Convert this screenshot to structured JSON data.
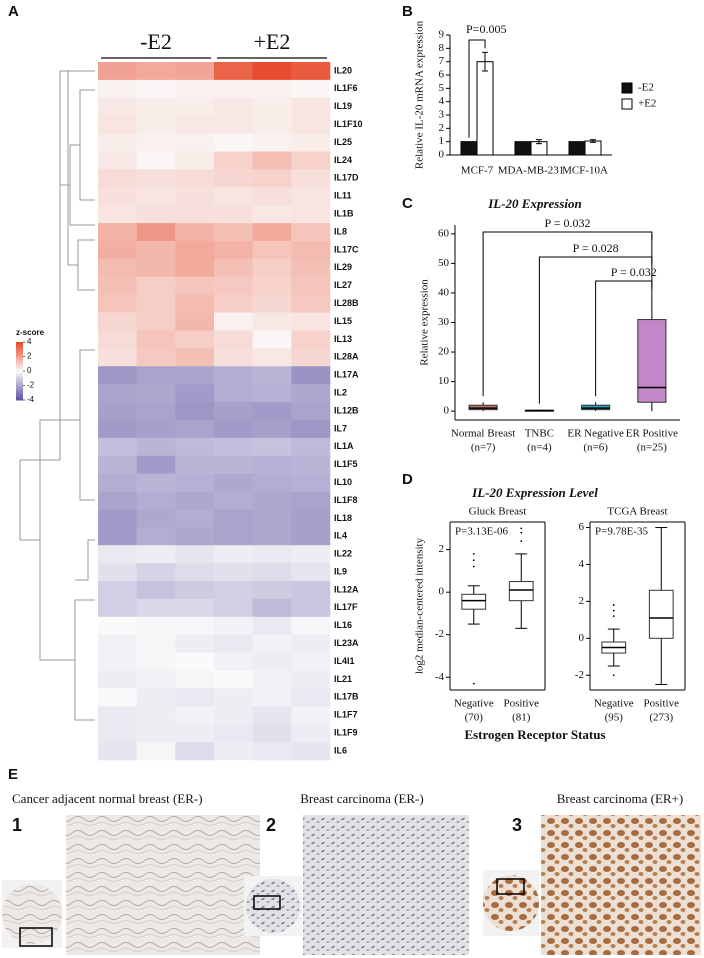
{
  "panel_labels": [
    "A",
    "B",
    "C",
    "D"
  ],
  "chart_data": [
    {
      "type": "heatmap",
      "groups": [
        "-E2",
        "+E2"
      ],
      "colorbar_label": "z-score",
      "zlim": [
        -4,
        4
      ],
      "zticks": [
        4,
        2,
        0,
        -2,
        -4
      ],
      "rows": [
        "IL20",
        "IL1F6",
        "IL19",
        "IL1F10",
        "IL25",
        "IL24",
        "IL17D",
        "IL11",
        "IL1B",
        "IL8",
        "IL17C",
        "IL29",
        "IL27",
        "IL28B",
        "IL15",
        "IL13",
        "IL28A",
        "IL17A",
        "IL2",
        "IL12B",
        "IL7",
        "IL1A",
        "IL1F5",
        "IL10",
        "IL1F8",
        "IL18",
        "IL4",
        "IL22",
        "IL9",
        "IL12A",
        "IL17F",
        "IL16",
        "IL23A",
        "IL4I1",
        "IL21",
        "IL17B",
        "IL1F7",
        "IL1F9",
        "IL6"
      ],
      "values": [
        [
          2.0,
          1.8,
          1.9,
          3.4,
          3.9,
          3.6
        ],
        [
          0.2,
          0.1,
          0.2,
          0.2,
          0.2,
          0.1
        ],
        [
          0.4,
          0.3,
          0.3,
          0.4,
          0.3,
          0.5
        ],
        [
          0.5,
          0.3,
          0.4,
          0.4,
          0.3,
          0.5
        ],
        [
          0.3,
          0.2,
          0.2,
          0.1,
          0.2,
          0.3
        ],
        [
          0.4,
          0.1,
          0.3,
          0.9,
          1.3,
          0.9
        ],
        [
          0.7,
          0.6,
          0.7,
          0.8,
          0.9,
          0.6
        ],
        [
          0.6,
          0.5,
          0.6,
          0.5,
          0.6,
          0.5
        ],
        [
          0.5,
          0.6,
          0.6,
          0.6,
          0.4,
          0.5
        ],
        [
          1.6,
          2.2,
          1.6,
          1.3,
          1.8,
          1.2
        ],
        [
          1.7,
          1.5,
          1.8,
          1.6,
          1.2,
          1.4
        ],
        [
          1.4,
          1.5,
          1.8,
          1.3,
          1.0,
          1.3
        ],
        [
          1.3,
          1.0,
          1.2,
          1.1,
          0.9,
          1.2
        ],
        [
          1.2,
          1.0,
          1.4,
          1.0,
          0.8,
          1.1
        ],
        [
          0.8,
          1.0,
          1.5,
          0.2,
          0.4,
          0.5
        ],
        [
          0.7,
          1.2,
          1.0,
          0.7,
          0.1,
          0.9
        ],
        [
          0.6,
          1.1,
          1.3,
          0.6,
          0.4,
          0.8
        ],
        [
          -2.3,
          -2.0,
          -2.0,
          -1.8,
          -1.6,
          -2.4
        ],
        [
          -2.0,
          -1.9,
          -2.2,
          -1.8,
          -1.7,
          -1.9
        ],
        [
          -2.1,
          -2.0,
          -2.3,
          -2.1,
          -2.2,
          -2.0
        ],
        [
          -2.2,
          -2.1,
          -2.0,
          -2.2,
          -2.1,
          -2.3
        ],
        [
          -1.4,
          -1.6,
          -1.5,
          -1.4,
          -1.3,
          -1.5
        ],
        [
          -1.6,
          -2.2,
          -1.6,
          -1.6,
          -1.7,
          -1.6
        ],
        [
          -1.8,
          -1.6,
          -1.7,
          -1.9,
          -1.8,
          -1.7
        ],
        [
          -2.0,
          -1.8,
          -1.9,
          -1.8,
          -1.9,
          -2.0
        ],
        [
          -2.2,
          -1.9,
          -1.8,
          -2.0,
          -1.9,
          -2.1
        ],
        [
          -2.2,
          -1.8,
          -1.9,
          -2.0,
          -1.9,
          -2.1
        ],
        [
          -0.4,
          -0.3,
          -0.5,
          -0.3,
          -0.4,
          -0.3
        ],
        [
          -0.6,
          -0.9,
          -0.7,
          -0.6,
          -0.7,
          -0.5
        ],
        [
          -1.0,
          -1.3,
          -1.1,
          -1.0,
          -1.1,
          -1.2
        ],
        [
          -1.0,
          -0.8,
          -0.8,
          -1.0,
          -1.5,
          -1.2
        ],
        [
          0.0,
          -0.1,
          -0.1,
          -0.2,
          -0.4,
          -0.1
        ],
        [
          -0.2,
          -0.1,
          -0.3,
          -0.4,
          -0.2,
          -0.3
        ],
        [
          -0.2,
          -0.1,
          0.0,
          -0.2,
          -0.3,
          -0.2
        ],
        [
          -0.3,
          -0.2,
          -0.1,
          0.0,
          -0.2,
          -0.3
        ],
        [
          0.0,
          -0.3,
          -0.4,
          -0.3,
          -0.2,
          -0.4
        ],
        [
          -0.4,
          -0.3,
          -0.2,
          -0.3,
          -0.5,
          -0.2
        ],
        [
          -0.4,
          -0.3,
          -0.3,
          -0.4,
          -0.6,
          -0.3
        ],
        [
          -0.5,
          -0.1,
          -0.7,
          -0.3,
          -0.4,
          -0.5
        ]
      ]
    },
    {
      "type": "bar",
      "ylabel": "Relative IL-20 mRNA expression",
      "categories": [
        "MCF-7",
        "MDA-MB-231",
        "MCF-10A"
      ],
      "series": [
        {
          "name": "-E2",
          "color": "#111111",
          "values": [
            1,
            1,
            1
          ]
        },
        {
          "name": "+E2",
          "color": "#ffffff",
          "values": [
            7,
            1,
            1.05
          ],
          "errors": [
            0.7,
            0.15,
            0.1
          ]
        }
      ],
      "ylim": [
        0,
        9
      ],
      "yticks": [
        0,
        1,
        2,
        3,
        4,
        5,
        6,
        7,
        8,
        9
      ],
      "annotations": [
        "P=0.005"
      ]
    },
    {
      "type": "box",
      "title": "IL-20 Expression",
      "ylabel": "Relative expression",
      "categories": [
        "Normal Breast",
        "TNBC",
        "ER Negative",
        "ER Positive"
      ],
      "n_labels": [
        "(n=7)",
        "(n=4)",
        "(n=6)",
        "(n=25)"
      ],
      "boxes": [
        {
          "color": "#c0736b",
          "min": 0,
          "q1": 0.5,
          "median": 1,
          "q3": 2,
          "max": 3
        },
        {
          "color": "#666666",
          "min": 0,
          "q1": 0,
          "median": 0.2,
          "q3": 0.3,
          "max": 0.5
        },
        {
          "color": "#2aa3b8",
          "min": 0,
          "q1": 0.5,
          "median": 1,
          "q3": 2,
          "max": 3
        },
        {
          "color": "#c386c6",
          "min": 0,
          "q1": 3,
          "median": 8,
          "q3": 31,
          "max": 60
        }
      ],
      "ylim": [
        -3,
        63
      ],
      "yticks": [
        0,
        10,
        20,
        30,
        40,
        50,
        60
      ],
      "annotations": [
        "P = 0.032",
        "P = 0.028",
        "P = 0.032"
      ]
    },
    {
      "type": "box",
      "title": "IL-20 Expression Level",
      "subtitle": "Gluck Breast",
      "ylabel": "log2 median-centered intensity",
      "xlabel": "Estrogen Receptor Status",
      "annotation": "P=3.13E-06",
      "categories": [
        "Negative",
        "Positive"
      ],
      "n_labels": [
        "(70)",
        "(81)"
      ],
      "boxes": [
        {
          "color": "#ffffff",
          "min": -1.5,
          "q1": -0.8,
          "median": -0.4,
          "q3": -0.1,
          "max": 0.3,
          "outliers": [
            -4.3,
            1.2,
            1.5,
            1.8
          ]
        },
        {
          "color": "#ffffff",
          "min": -1.7,
          "q1": -0.4,
          "median": 0.1,
          "q3": 0.5,
          "max": 1.8,
          "outliers": [
            2.4,
            2.8,
            3.0
          ]
        }
      ],
      "ylim": [
        -4.6,
        3.3
      ],
      "yticks": [
        -4,
        -2,
        0,
        2
      ]
    },
    {
      "type": "box",
      "subtitle": "TCGA Breast",
      "annotation": "P=9.78E-35",
      "categories": [
        "Negative",
        "Positive"
      ],
      "n_labels": [
        "(95)",
        "(273)"
      ],
      "boxes": [
        {
          "color": "#ffffff",
          "min": -1.5,
          "q1": -0.8,
          "median": -0.5,
          "q3": -0.2,
          "max": 0.5,
          "outliers": [
            1.2,
            1.5,
            1.8,
            -2.0
          ]
        },
        {
          "color": "#ffffff",
          "min": -2.5,
          "q1": 0,
          "median": 1.1,
          "q3": 2.6,
          "max": 6
        }
      ],
      "ylim": [
        -2.8,
        6.3
      ],
      "yticks": [
        -2,
        0,
        2,
        4,
        6
      ]
    }
  ],
  "panel_e": {
    "label": "E",
    "images": [
      {
        "number": "1",
        "caption": "Cancer adjacent normal breast (ER-)"
      },
      {
        "number": "2",
        "caption": "Breast carcinoma (ER-)"
      },
      {
        "number": "3",
        "caption": "Breast carcinoma (ER+)"
      }
    ]
  }
}
